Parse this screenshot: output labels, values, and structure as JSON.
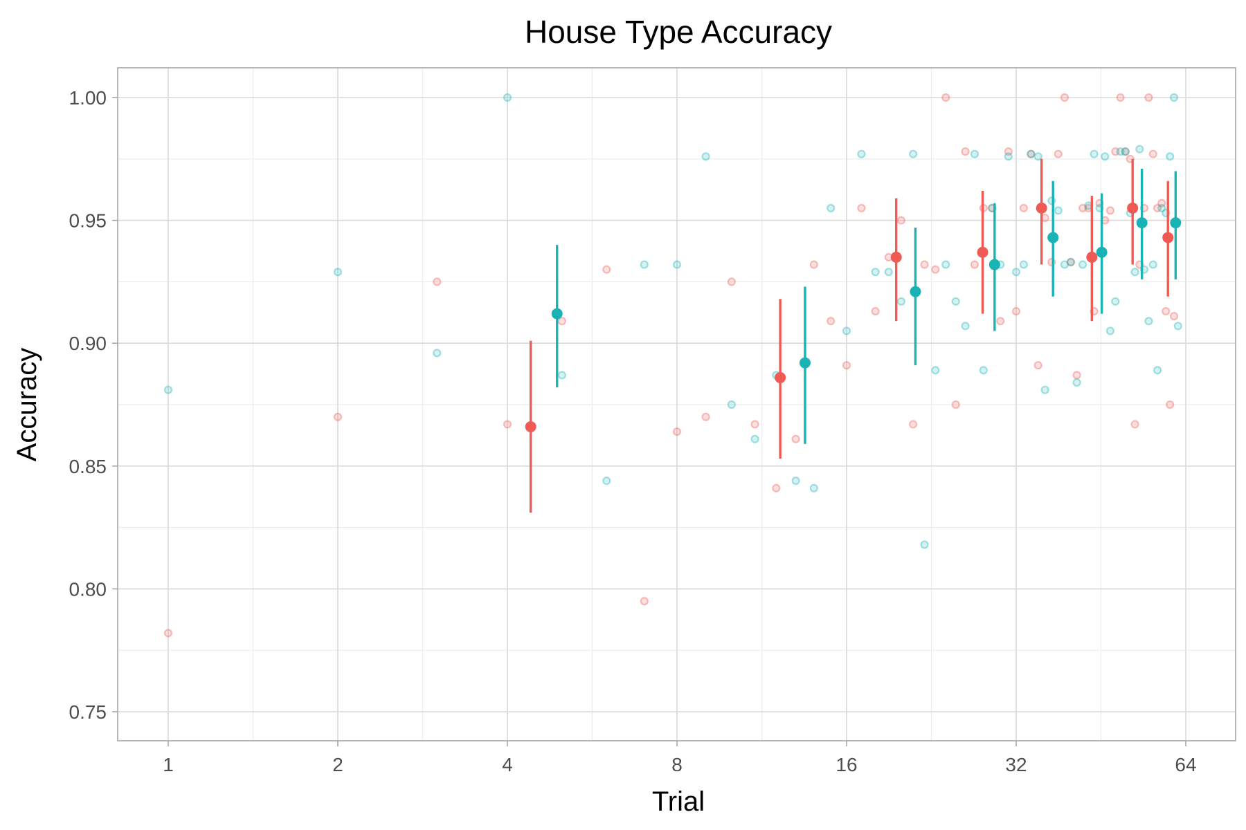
{
  "chart_data": {
    "type": "scatter",
    "title": "House Type Accuracy",
    "xlabel": "Trial",
    "ylabel": "Accuracy",
    "x_scale": "log2",
    "xlim": [
      1,
      64
    ],
    "ylim": [
      0.75,
      1.0
    ],
    "x_ticks": [
      1,
      2,
      4,
      8,
      16,
      32,
      64
    ],
    "x_tick_labels": [
      "1",
      "2",
      "4",
      "8",
      "16",
      "32",
      "64"
    ],
    "y_ticks": [
      0.75,
      0.8,
      0.85,
      0.9,
      0.95,
      1.0
    ],
    "y_tick_labels": [
      "0.75",
      "0.80",
      "0.85",
      "0.90",
      "0.95",
      "1.00"
    ],
    "grid": true,
    "legend": "none",
    "colors": {
      "red": "#f05a55",
      "teal": "#19b3b5"
    },
    "series": [
      {
        "color": "red",
        "raw_points": [
          [
            1,
            0.782
          ],
          [
            2,
            0.87
          ],
          [
            3,
            0.925
          ],
          [
            4,
            0.867
          ],
          [
            5,
            0.909
          ],
          [
            6,
            0.93
          ],
          [
            7,
            0.795
          ],
          [
            8,
            0.864
          ],
          [
            9,
            0.87
          ],
          [
            10,
            0.925
          ],
          [
            11,
            0.867
          ],
          [
            12,
            0.841
          ],
          [
            13,
            0.861
          ],
          [
            14,
            0.932
          ],
          [
            15,
            0.909
          ],
          [
            16,
            0.891
          ],
          [
            17,
            0.955
          ],
          [
            18,
            0.913
          ],
          [
            19,
            0.935
          ],
          [
            20,
            0.95
          ],
          [
            21,
            0.867
          ],
          [
            22,
            0.932
          ],
          [
            23,
            0.93
          ],
          [
            24,
            1.0
          ],
          [
            25,
            0.875
          ],
          [
            26,
            0.978
          ],
          [
            27,
            0.932
          ],
          [
            28,
            0.955
          ],
          [
            29,
            0.955
          ],
          [
            30,
            0.909
          ],
          [
            31,
            0.978
          ],
          [
            32,
            0.913
          ],
          [
            33,
            0.955
          ],
          [
            34,
            0.977
          ],
          [
            35,
            0.891
          ],
          [
            36,
            0.951
          ],
          [
            37,
            0.933
          ],
          [
            38,
            0.977
          ],
          [
            39,
            1.0
          ],
          [
            40,
            0.933
          ],
          [
            41,
            0.887
          ],
          [
            42,
            0.955
          ],
          [
            43,
            0.955
          ],
          [
            44,
            0.913
          ],
          [
            45,
            0.957
          ],
          [
            46,
            0.95
          ],
          [
            47,
            0.954
          ],
          [
            48,
            0.978
          ],
          [
            49,
            1.0
          ],
          [
            50,
            0.978
          ],
          [
            51,
            0.975
          ],
          [
            52,
            0.867
          ],
          [
            53,
            0.932
          ],
          [
            54,
            0.955
          ],
          [
            55,
            1.0
          ],
          [
            56,
            0.977
          ],
          [
            57,
            0.955
          ],
          [
            58,
            0.957
          ],
          [
            59,
            0.913
          ],
          [
            60,
            0.875
          ],
          [
            61,
            0.911
          ]
        ],
        "means": [
          {
            "x": 4.4,
            "y": 0.866,
            "low": 0.831,
            "high": 0.901
          },
          {
            "x": 12.2,
            "y": 0.886,
            "low": 0.853,
            "high": 0.918
          },
          {
            "x": 19.6,
            "y": 0.935,
            "low": 0.909,
            "high": 0.959
          },
          {
            "x": 27.9,
            "y": 0.937,
            "low": 0.912,
            "high": 0.962
          },
          {
            "x": 35.5,
            "y": 0.955,
            "low": 0.932,
            "high": 0.975
          },
          {
            "x": 43.6,
            "y": 0.935,
            "low": 0.909,
            "high": 0.96
          },
          {
            "x": 51.5,
            "y": 0.955,
            "low": 0.932,
            "high": 0.975
          },
          {
            "x": 59.5,
            "y": 0.943,
            "low": 0.919,
            "high": 0.966
          }
        ]
      },
      {
        "color": "teal",
        "raw_points": [
          [
            1,
            0.881
          ],
          [
            2,
            0.929
          ],
          [
            3,
            0.896
          ],
          [
            4,
            1.0
          ],
          [
            5,
            0.887
          ],
          [
            6,
            0.844
          ],
          [
            7,
            0.932
          ],
          [
            8,
            0.932
          ],
          [
            9,
            0.976
          ],
          [
            10,
            0.875
          ],
          [
            11,
            0.861
          ],
          [
            12,
            0.887
          ],
          [
            13,
            0.844
          ],
          [
            14,
            0.841
          ],
          [
            15,
            0.955
          ],
          [
            16,
            0.905
          ],
          [
            17,
            0.977
          ],
          [
            18,
            0.929
          ],
          [
            19,
            0.929
          ],
          [
            20,
            0.917
          ],
          [
            21,
            0.977
          ],
          [
            22,
            0.818
          ],
          [
            23,
            0.889
          ],
          [
            24,
            0.932
          ],
          [
            25,
            0.917
          ],
          [
            26,
            0.907
          ],
          [
            27,
            0.977
          ],
          [
            28,
            0.889
          ],
          [
            29,
            0.955
          ],
          [
            30,
            0.932
          ],
          [
            31,
            0.976
          ],
          [
            32,
            0.929
          ],
          [
            33,
            0.932
          ],
          [
            34,
            0.977
          ],
          [
            35,
            0.976
          ],
          [
            36,
            0.881
          ],
          [
            37,
            0.958
          ],
          [
            38,
            0.954
          ],
          [
            39,
            0.932
          ],
          [
            40,
            0.933
          ],
          [
            41,
            0.884
          ],
          [
            42,
            0.932
          ],
          [
            43,
            0.956
          ],
          [
            44,
            0.977
          ],
          [
            45,
            0.955
          ],
          [
            46,
            0.976
          ],
          [
            47,
            0.905
          ],
          [
            48,
            0.917
          ],
          [
            49,
            0.978
          ],
          [
            50,
            0.978
          ],
          [
            51,
            0.953
          ],
          [
            52,
            0.929
          ],
          [
            53,
            0.979
          ],
          [
            54,
            0.93
          ],
          [
            55,
            0.909
          ],
          [
            56,
            0.932
          ],
          [
            57,
            0.889
          ],
          [
            58,
            0.955
          ],
          [
            59,
            0.953
          ],
          [
            60,
            0.976
          ],
          [
            61,
            1.0
          ],
          [
            62,
            0.907
          ]
        ],
        "means": [
          {
            "x": 4.9,
            "y": 0.912,
            "low": 0.882,
            "high": 0.94
          },
          {
            "x": 13.5,
            "y": 0.892,
            "low": 0.859,
            "high": 0.923
          },
          {
            "x": 21.2,
            "y": 0.921,
            "low": 0.891,
            "high": 0.947
          },
          {
            "x": 29.3,
            "y": 0.932,
            "low": 0.905,
            "high": 0.957
          },
          {
            "x": 37.2,
            "y": 0.943,
            "low": 0.919,
            "high": 0.966
          },
          {
            "x": 45.4,
            "y": 0.937,
            "low": 0.912,
            "high": 0.961
          },
          {
            "x": 53.5,
            "y": 0.949,
            "low": 0.926,
            "high": 0.971
          },
          {
            "x": 61.4,
            "y": 0.949,
            "low": 0.926,
            "high": 0.97
          }
        ]
      }
    ]
  }
}
